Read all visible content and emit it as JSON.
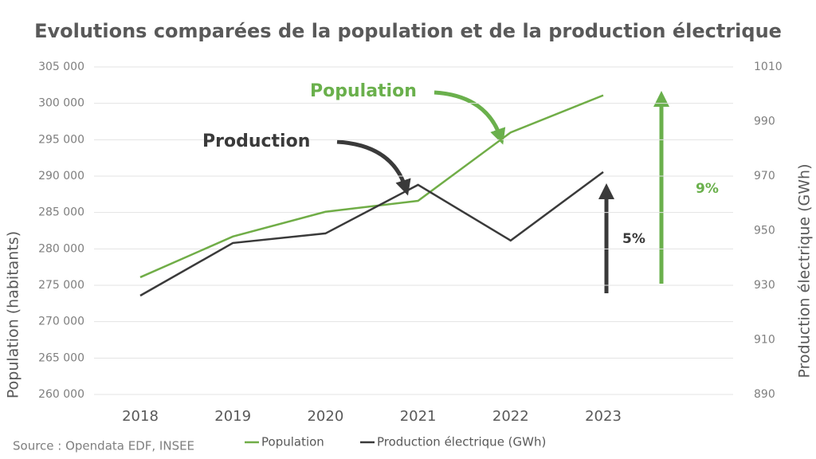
{
  "chart_data": {
    "type": "line",
    "title": "Evolutions comparées de la population et de la production électrique",
    "source": "Source : Opendata EDF, INSEE",
    "y_label": "Population (habitants)",
    "y2_label": "Production électrique (GWh)",
    "categories": [
      "2018",
      "2019",
      "2020",
      "2021",
      "2022",
      "2023"
    ],
    "series": [
      {
        "name": "Population",
        "color": "#70ad47",
        "values": [
          276100,
          281700,
          285100,
          286600,
          296000,
          301100
        ]
      },
      {
        "name": "Production électrique (GWh)",
        "color": "#3a3a3a",
        "axis": "y2",
        "values": [
          926.2,
          945.5,
          949,
          966.8,
          946.4,
          971.5
        ]
      }
    ],
    "ylim": [
      260000,
      305000
    ],
    "yticks": [
      {
        "value": 260000,
        "label": "260 000"
      },
      {
        "value": 265000,
        "label": "265 000"
      },
      {
        "value": 270000,
        "label": "270 000"
      },
      {
        "value": 275000,
        "label": "275 000"
      },
      {
        "value": 280000,
        "label": "280 000"
      },
      {
        "value": 285000,
        "label": "285 000"
      },
      {
        "value": 290000,
        "label": "290 000"
      },
      {
        "value": 295000,
        "label": "295 000"
      },
      {
        "value": 300000,
        "label": "300 000"
      },
      {
        "value": 305000,
        "label": "305 000"
      }
    ],
    "y2lim": [
      890,
      1010
    ],
    "y2ticks": [
      890,
      910,
      930,
      950,
      970,
      990,
      1010
    ],
    "grid": true,
    "legend": "bottom",
    "annotations": [
      {
        "text": "Population",
        "color": "#6ab04c"
      },
      {
        "text": "Production",
        "color": "#3a3a3a"
      },
      {
        "text": "9%",
        "color": "#6ab04c"
      },
      {
        "text": "5%",
        "color": "#3a3a3a"
      }
    ]
  }
}
